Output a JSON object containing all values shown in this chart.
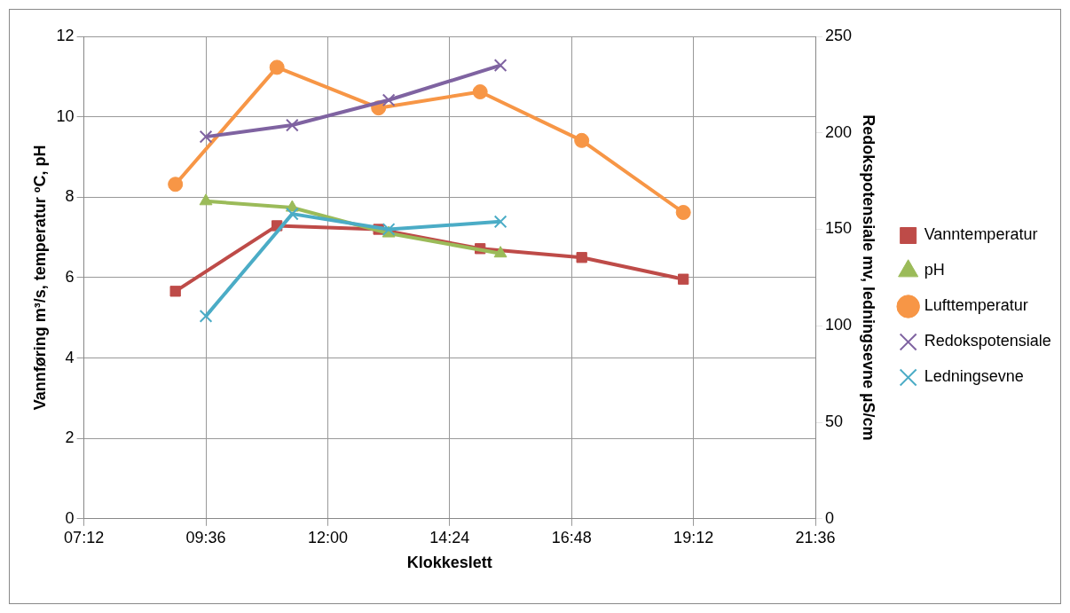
{
  "chart_data": {
    "type": "line",
    "xlabel": "Klokkeslett",
    "ylabel": "Vannføring m³/s, temperatur ºC, pH",
    "y2label": "Redokspotensiale mv, ledningsevne µS/cm",
    "xlim": [
      7.2,
      21.6
    ],
    "xticks": [
      {
        "value": 7.2,
        "label": "07:12"
      },
      {
        "value": 9.6,
        "label": "09:36"
      },
      {
        "value": 12,
        "label": "12:00"
      },
      {
        "value": 14.4,
        "label": "14:24"
      },
      {
        "value": 16.8,
        "label": "16:48"
      },
      {
        "value": 19.2,
        "label": "19:12"
      },
      {
        "value": 21.6,
        "label": "21:36"
      }
    ],
    "ylim": [
      0,
      12
    ],
    "yticks": [
      0,
      2,
      4,
      6,
      8,
      10,
      12
    ],
    "y2lim": [
      0,
      250
    ],
    "y2ticks": [
      0,
      50,
      100,
      150,
      200,
      250
    ],
    "grid": true,
    "legend": "right",
    "series": [
      {
        "name": "Vanntemperatur",
        "color": "#be4b48",
        "marker": "square",
        "x": [
          9.0,
          11.0,
          13.0,
          15.0,
          17.0,
          19.0
        ],
        "values": [
          5.66,
          7.29,
          7.2,
          6.72,
          6.5,
          5.96
        ]
      },
      {
        "name": "pH",
        "color": "#9bbb59",
        "marker": "triangle",
        "x": [
          9.6,
          11.3,
          13.2,
          15.4
        ],
        "values": [
          7.9,
          7.74,
          7.1,
          6.6
        ]
      },
      {
        "name": "Lufttemperatur",
        "color": "#f79646",
        "marker": "circle",
        "x": [
          9.0,
          11.0,
          13.0,
          15.0,
          17.0,
          19.0
        ],
        "values": [
          8.32,
          11.23,
          10.22,
          10.62,
          9.41,
          7.62
        ]
      },
      {
        "name": "Redokspotensiale",
        "color": "#7f63a1",
        "marker": "cross",
        "axis": "y2",
        "x": [
          9.6,
          11.3,
          13.2,
          15.4
        ],
        "values": [
          198,
          204,
          217,
          235
        ]
      },
      {
        "name": "Ledningsevne",
        "color": "#4bacc6",
        "marker": "cross",
        "axis": "y2",
        "x": [
          9.6,
          11.3,
          13.2,
          15.4
        ],
        "values": [
          105,
          158,
          150,
          154
        ]
      }
    ]
  }
}
